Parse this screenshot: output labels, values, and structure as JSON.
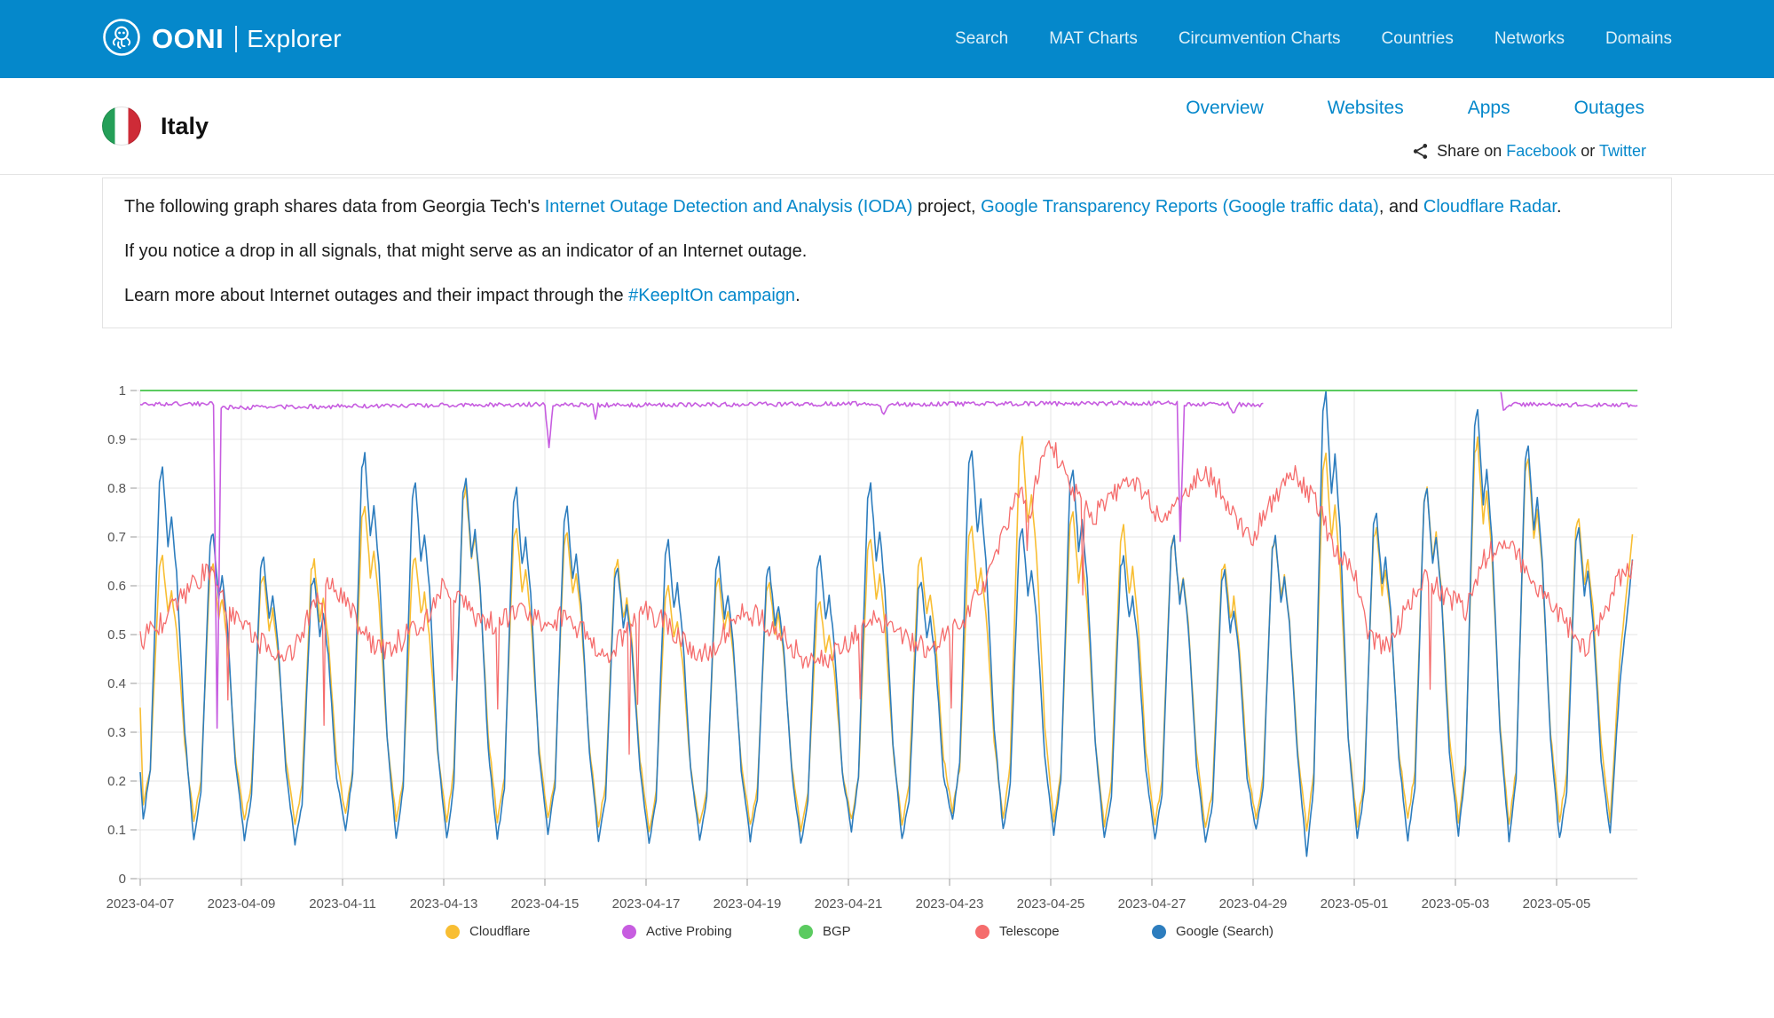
{
  "header": {
    "brand": "OONI",
    "brand_sub": "Explorer",
    "nav": [
      "Search",
      "MAT Charts",
      "Circumvention Charts",
      "Countries",
      "Networks",
      "Domains"
    ]
  },
  "country": {
    "name": "Italy",
    "tabs": [
      "Overview",
      "Websites",
      "Apps",
      "Outages"
    ],
    "share": {
      "t1": "Share on ",
      "facebook": "Facebook",
      "t2": " or ",
      "twitter": "Twitter"
    }
  },
  "info": {
    "p1": [
      {
        "t": "The following graph shares data from Georgia Tech's "
      },
      {
        "a": "Internet Outage Detection and Analysis (IODA)"
      },
      {
        "t": " project, "
      },
      {
        "a": "Google Transparency Reports (Google traffic data)"
      },
      {
        "t": ", and "
      },
      {
        "a": "Cloudflare Radar"
      },
      {
        "t": "."
      }
    ],
    "p2": "If you notice a drop in all signals, that might serve as an indicator of an Internet outage.",
    "p3": [
      {
        "t": "Learn more about Internet outages and their impact through the "
      },
      {
        "a": "#KeepItOn campaign"
      },
      {
        "t": "."
      }
    ]
  },
  "chart_data": {
    "type": "line",
    "title": "",
    "xlabel": "",
    "ylabel": "",
    "ylim": [
      0,
      1
    ],
    "grid": true,
    "legend_position": "bottom",
    "x_tick_labels": [
      "2023-04-07",
      "2023-04-09",
      "2023-04-11",
      "2023-04-13",
      "2023-04-15",
      "2023-04-17",
      "2023-04-19",
      "2023-04-21",
      "2023-04-23",
      "2023-04-25",
      "2023-04-27",
      "2023-04-29",
      "2023-05-01",
      "2023-05-03",
      "2023-05-05"
    ],
    "y_ticks": [
      0,
      0.1,
      0.2,
      0.3,
      0.4,
      0.5,
      0.6,
      0.7,
      0.8,
      0.9,
      1
    ],
    "x_range_days": [
      0,
      29.6
    ],
    "draw_order": [
      0,
      4,
      3,
      1,
      2
    ],
    "series": [
      {
        "name": "Cloudflare",
        "color": "#F8BE33",
        "width": 1.6,
        "noise": 0.006,
        "daily": {
          "lead": [
            [
              0,
              0.35
            ]
          ],
          "peaks": [
            0.66,
            0.65,
            0.62,
            0.65,
            0.76,
            0.66,
            0.8,
            0.72,
            0.71,
            0.65,
            0.6,
            0.62,
            0.61,
            0.57,
            0.7,
            0.66,
            0.72,
            0.9,
            0.75,
            0.72,
            0.7,
            0.65,
            0.7,
            0.87,
            0.72,
            0.8,
            0.9,
            0.86,
            0.74
          ],
          "troughs": [
            0.15,
            0.12,
            0.12,
            0.11,
            0.13,
            0.12,
            0.12,
            0.12,
            0.12,
            0.11,
            0.1,
            0.11,
            0.11,
            0.1,
            0.12,
            0.11,
            0.14,
            0.12,
            0.12,
            0.11,
            0.11,
            0.1,
            0.12,
            0.1,
            0.11,
            0.12,
            0.12,
            0.11,
            0.12
          ],
          "tail": [
            [
              29.06,
              0.12
            ],
            [
              29.25,
              0.45
            ],
            [
              29.5,
              0.7
            ]
          ]
        }
      },
      {
        "name": "Active Probing",
        "color": "#C75DE0",
        "width": 1.6,
        "noise": 0.0045,
        "segments": [
          [
            [
              0,
              0.972
            ],
            [
              1.45,
              0.973
            ],
            [
              1.52,
              0.31
            ],
            [
              1.6,
              0.965
            ],
            [
              8.0,
              0.972
            ],
            [
              8.08,
              0.885
            ],
            [
              8.16,
              0.972
            ],
            [
              8.95,
              0.97
            ],
            [
              9.0,
              0.94
            ],
            [
              9.05,
              0.97
            ],
            [
              14.6,
              0.973
            ],
            [
              14.7,
              0.952
            ],
            [
              14.8,
              0.972
            ],
            [
              20.5,
              0.974
            ],
            [
              20.56,
              0.69
            ],
            [
              20.64,
              0.972
            ],
            [
              21.5,
              0.972
            ],
            [
              21.6,
              0.952
            ],
            [
              21.7,
              0.972
            ],
            [
              22.2,
              0.97
            ]
          ],
          [
            [
              26.9,
              0.998
            ],
            [
              26.95,
              0.963
            ],
            [
              27.1,
              0.972
            ],
            [
              29.6,
              0.97
            ]
          ]
        ]
      },
      {
        "name": "BGP",
        "color": "#5BCB60",
        "width": 2,
        "noise": 0,
        "segments": [
          [
            [
              0,
              1.0
            ],
            [
              29.6,
              1.0
            ]
          ]
        ]
      },
      {
        "name": "Telescope",
        "color": "#F56C6C",
        "width": 1.3,
        "noise": 0.025,
        "spikes": true,
        "segments": [
          [
            [
              0,
              0.49
            ],
            [
              0.5,
              0.53
            ],
            [
              1,
              0.6
            ],
            [
              1.3,
              0.63
            ],
            [
              1.8,
              0.55
            ],
            [
              2.2,
              0.5
            ],
            [
              2.6,
              0.46
            ],
            [
              3,
              0.47
            ],
            [
              3.4,
              0.55
            ],
            [
              3.7,
              0.6
            ],
            [
              4,
              0.58
            ],
            [
              4.4,
              0.5
            ],
            [
              4.8,
              0.47
            ],
            [
              5.2,
              0.49
            ],
            [
              5.6,
              0.53
            ],
            [
              6,
              0.6
            ],
            [
              6.3,
              0.58
            ],
            [
              6.8,
              0.52
            ],
            [
              7.2,
              0.53
            ],
            [
              7.6,
              0.55
            ],
            [
              8,
              0.52
            ],
            [
              8.4,
              0.54
            ],
            [
              8.8,
              0.5
            ],
            [
              9.2,
              0.46
            ],
            [
              9.6,
              0.5
            ],
            [
              10,
              0.55
            ],
            [
              10.4,
              0.52
            ],
            [
              10.8,
              0.48
            ],
            [
              11.2,
              0.46
            ],
            [
              11.6,
              0.51
            ],
            [
              12,
              0.55
            ],
            [
              12.4,
              0.52
            ],
            [
              12.8,
              0.49
            ],
            [
              13.2,
              0.44
            ],
            [
              13.6,
              0.45
            ],
            [
              14,
              0.48
            ],
            [
              14.4,
              0.53
            ],
            [
              14.8,
              0.52
            ],
            [
              15.2,
              0.49
            ],
            [
              15.6,
              0.47
            ],
            [
              16,
              0.5
            ],
            [
              16.4,
              0.55
            ],
            [
              16.8,
              0.62
            ],
            [
              17.1,
              0.72
            ],
            [
              17.4,
              0.8
            ],
            [
              17.6,
              0.76
            ],
            [
              17.9,
              0.9
            ],
            [
              18.1,
              0.87
            ],
            [
              18.4,
              0.8
            ],
            [
              18.8,
              0.74
            ],
            [
              19.2,
              0.78
            ],
            [
              19.5,
              0.83
            ],
            [
              19.8,
              0.8
            ],
            [
              20.2,
              0.73
            ],
            [
              20.6,
              0.77
            ],
            [
              21,
              0.84
            ],
            [
              21.3,
              0.8
            ],
            [
              21.7,
              0.73
            ],
            [
              22,
              0.7
            ],
            [
              22.4,
              0.78
            ],
            [
              22.8,
              0.83
            ],
            [
              23.2,
              0.78
            ],
            [
              23.6,
              0.68
            ],
            [
              24,
              0.63
            ],
            [
              24.3,
              0.5
            ],
            [
              24.7,
              0.47
            ],
            [
              25,
              0.55
            ],
            [
              25.4,
              0.62
            ],
            [
              25.8,
              0.58
            ],
            [
              26.2,
              0.55
            ],
            [
              26.6,
              0.66
            ],
            [
              27,
              0.7
            ],
            [
              27.4,
              0.63
            ],
            [
              27.8,
              0.58
            ],
            [
              28.2,
              0.52
            ],
            [
              28.6,
              0.47
            ],
            [
              29,
              0.56
            ],
            [
              29.3,
              0.63
            ],
            [
              29.5,
              0.64
            ]
          ]
        ]
      },
      {
        "name": "Google (Search)",
        "color": "#2D7DBE",
        "width": 1.6,
        "noise": 0.005,
        "daily": {
          "lead": [
            [
              0,
              0.22
            ]
          ],
          "peaks": [
            0.84,
            0.71,
            0.66,
            0.62,
            0.87,
            0.81,
            0.82,
            0.8,
            0.76,
            0.64,
            0.69,
            0.66,
            0.64,
            0.66,
            0.81,
            0.61,
            0.88,
            0.72,
            0.84,
            0.66,
            0.7,
            0.63,
            0.7,
            1.0,
            0.75,
            0.8,
            0.96,
            0.89,
            0.72
          ],
          "troughs": [
            0.12,
            0.08,
            0.08,
            0.07,
            0.1,
            0.08,
            0.08,
            0.08,
            0.09,
            0.08,
            0.07,
            0.08,
            0.08,
            0.07,
            0.1,
            0.08,
            0.12,
            0.1,
            0.09,
            0.08,
            0.08,
            0.07,
            0.1,
            0.05,
            0.08,
            0.08,
            0.09,
            0.08,
            0.08
          ],
          "tail": [
            [
              29.06,
              0.09
            ],
            [
              29.25,
              0.4
            ],
            [
              29.5,
              0.65
            ]
          ]
        }
      }
    ]
  }
}
